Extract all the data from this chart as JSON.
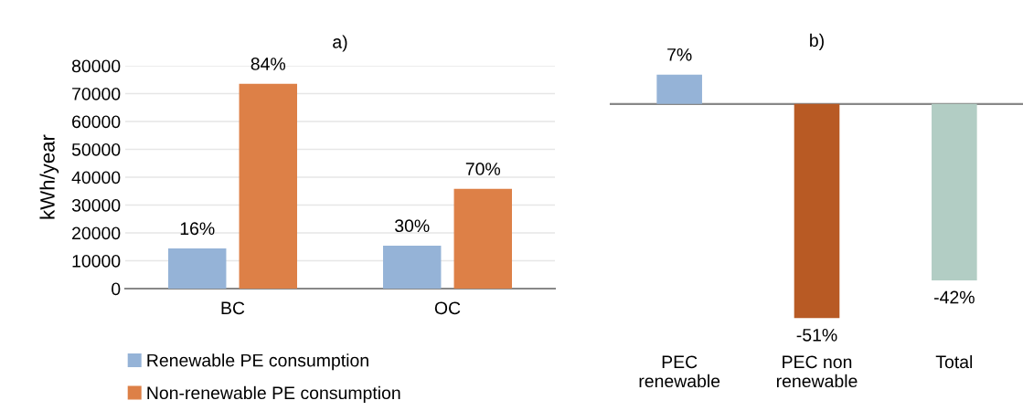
{
  "chart_data": [
    {
      "type": "bar",
      "title": "a)",
      "ylabel": "kWh/year",
      "categories": [
        "BC",
        "OC"
      ],
      "series": [
        {
          "name": "Renewable PE consumption",
          "color": "#95b3d7",
          "values": [
            14400,
            15400
          ]
        },
        {
          "name": "Non-renewable PE consumption",
          "color": "#dd8047",
          "values": [
            73500,
            35800
          ]
        }
      ],
      "annotations": [
        "16%",
        "84%",
        "30%",
        "70%"
      ],
      "ylim": [
        0,
        80000
      ],
      "yticks": [
        0,
        10000,
        20000,
        30000,
        40000,
        50000,
        60000,
        70000,
        80000
      ],
      "grid": "y",
      "legend": "bottom"
    },
    {
      "type": "bar",
      "title": "b)",
      "categories": [
        "PEC\nrenewable",
        "PEC non\nrenewable",
        "Total"
      ],
      "values": [
        7,
        -51,
        -42
      ],
      "colors": [
        "#95b3d7",
        "#b85a24",
        "#b2cdc4"
      ],
      "value_labels": [
        "7%",
        "-51%",
        "-42%"
      ],
      "tick_labels": "x",
      "grid": false,
      "legend": false
    }
  ]
}
